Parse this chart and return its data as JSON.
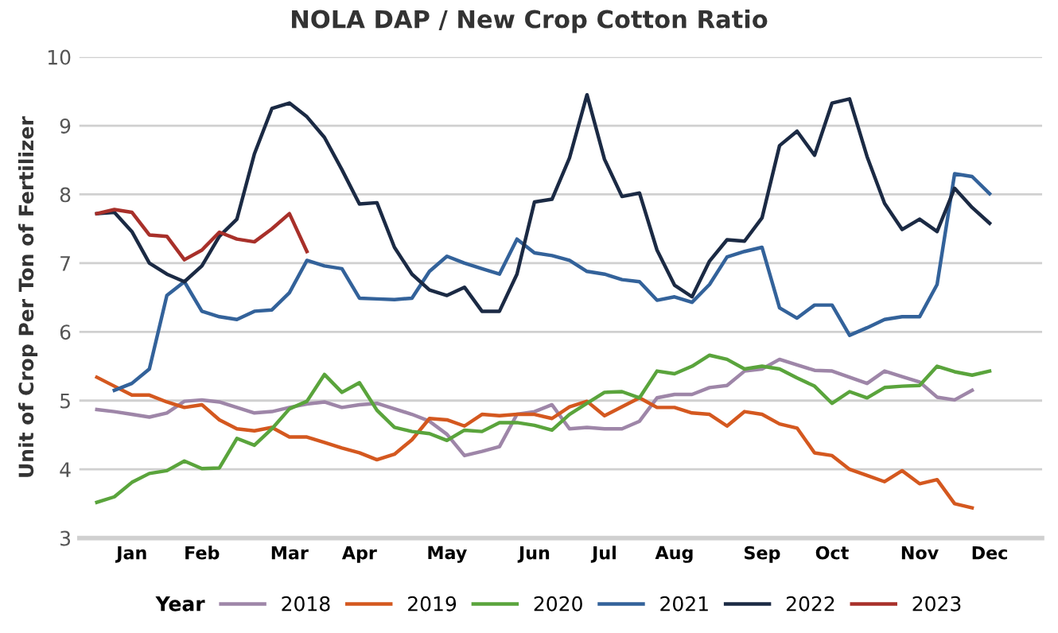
{
  "chart_data": {
    "type": "line",
    "title": "NOLA DAP / New Crop Cotton Ratio",
    "ylabel": "Unit of Crop Per Ton of Fertilizer",
    "legend_title": "Year",
    "categories": [
      null,
      null,
      "Jan",
      null,
      null,
      null,
      "Feb",
      null,
      null,
      null,
      null,
      "Mar",
      null,
      null,
      null,
      "Apr",
      null,
      null,
      null,
      null,
      "May",
      null,
      null,
      null,
      null,
      "Jun",
      null,
      null,
      null,
      "Jul",
      null,
      null,
      null,
      "Aug",
      null,
      null,
      null,
      null,
      "Sep",
      null,
      null,
      null,
      "Oct",
      null,
      null,
      null,
      null,
      "Nov",
      null,
      null,
      null,
      "Dec"
    ],
    "ylim": [
      3,
      10
    ],
    "yticks": [
      3,
      4,
      5,
      6,
      7,
      8,
      9,
      10
    ],
    "grid": "y",
    "legend": "bottom",
    "marker": "none",
    "line_style": "solid",
    "series": [
      {
        "name": "2018",
        "color": "#9e86a8",
        "values": [
          4.87,
          4.84,
          4.8,
          4.76,
          4.82,
          4.99,
          5.01,
          4.98,
          4.9,
          4.82,
          4.84,
          4.9,
          4.95,
          4.98,
          4.9,
          4.94,
          4.96,
          4.88,
          4.8,
          4.7,
          4.51,
          4.2,
          4.26,
          4.33,
          4.8,
          4.84,
          4.94,
          4.59,
          4.61,
          4.59,
          4.59,
          4.7,
          5.04,
          5.09,
          5.09,
          5.19,
          5.22,
          5.43,
          5.46,
          5.6,
          5.52,
          5.44,
          5.43,
          5.34,
          5.25,
          5.43,
          5.35,
          5.27,
          5.05,
          5.01,
          5.15,
          null
        ]
      },
      {
        "name": "2019",
        "color": "#d4581f",
        "values": [
          5.34,
          5.21,
          5.08,
          5.08,
          4.98,
          4.9,
          4.94,
          4.72,
          4.59,
          4.56,
          4.61,
          4.47,
          4.47,
          4.39,
          4.31,
          4.24,
          4.14,
          4.22,
          4.43,
          4.74,
          4.72,
          4.63,
          4.8,
          4.78,
          4.8,
          4.8,
          4.74,
          4.91,
          4.99,
          4.78,
          4.91,
          5.04,
          4.9,
          4.9,
          4.82,
          4.8,
          4.63,
          4.84,
          4.8,
          4.66,
          4.6,
          4.24,
          4.2,
          4.0,
          3.91,
          3.82,
          3.98,
          3.79,
          3.85,
          3.5,
          3.44,
          null
        ]
      },
      {
        "name": "2020",
        "color": "#5aa43c",
        "values": [
          3.52,
          3.6,
          3.81,
          3.94,
          3.98,
          4.12,
          4.01,
          4.02,
          4.45,
          4.35,
          4.59,
          4.88,
          4.99,
          5.38,
          5.12,
          5.26,
          4.86,
          4.61,
          4.55,
          4.52,
          4.42,
          4.57,
          4.55,
          4.68,
          4.68,
          4.64,
          4.57,
          4.8,
          4.96,
          5.12,
          5.13,
          5.04,
          5.43,
          5.39,
          5.5,
          5.66,
          5.6,
          5.46,
          5.5,
          5.46,
          5.33,
          5.21,
          4.96,
          5.13,
          5.04,
          5.19,
          5.21,
          5.22,
          5.5,
          5.42,
          5.37,
          5.43
        ]
      },
      {
        "name": "2021",
        "color": "#33629a",
        "values": [
          null,
          5.15,
          5.25,
          5.46,
          6.53,
          6.73,
          6.3,
          6.22,
          6.18,
          6.3,
          6.32,
          6.57,
          7.04,
          6.96,
          6.92,
          6.49,
          6.48,
          6.47,
          6.49,
          6.88,
          7.1,
          7.0,
          6.92,
          6.84,
          7.35,
          7.15,
          7.11,
          7.04,
          6.88,
          6.84,
          6.76,
          6.73,
          6.46,
          6.51,
          6.43,
          6.69,
          7.09,
          7.17,
          7.23,
          6.35,
          6.2,
          6.39,
          6.39,
          5.95,
          6.06,
          6.18,
          6.22,
          6.22,
          6.69,
          8.3,
          8.26,
          8.01
        ]
      },
      {
        "name": "2022",
        "color": "#1b2a44",
        "values": [
          7.72,
          7.74,
          7.46,
          7.0,
          6.84,
          6.73,
          6.96,
          7.39,
          7.64,
          8.59,
          9.25,
          9.33,
          9.13,
          8.83,
          8.36,
          7.86,
          7.88,
          7.23,
          6.84,
          6.61,
          6.53,
          6.65,
          6.3,
          6.3,
          6.84,
          7.89,
          7.93,
          8.53,
          9.45,
          8.51,
          7.97,
          8.02,
          7.19,
          6.68,
          6.51,
          7.03,
          7.34,
          7.32,
          7.66,
          8.71,
          8.92,
          8.57,
          9.33,
          9.39,
          8.55,
          7.87,
          7.49,
          7.64,
          7.46,
          8.09,
          7.81,
          7.58
        ]
      },
      {
        "name": "2023",
        "color": "#a8302a",
        "values": [
          7.72,
          7.78,
          7.74,
          7.41,
          7.39,
          7.05,
          7.19,
          7.45,
          7.35,
          7.31,
          7.5,
          7.72,
          7.17,
          null,
          null,
          null,
          null,
          null,
          null,
          null,
          null,
          null,
          null,
          null,
          null,
          null,
          null,
          null,
          null,
          null,
          null,
          null,
          null,
          null,
          null,
          null,
          null,
          null,
          null,
          null,
          null,
          null,
          null,
          null,
          null,
          null,
          null,
          null,
          null,
          null,
          null,
          null
        ]
      }
    ]
  }
}
